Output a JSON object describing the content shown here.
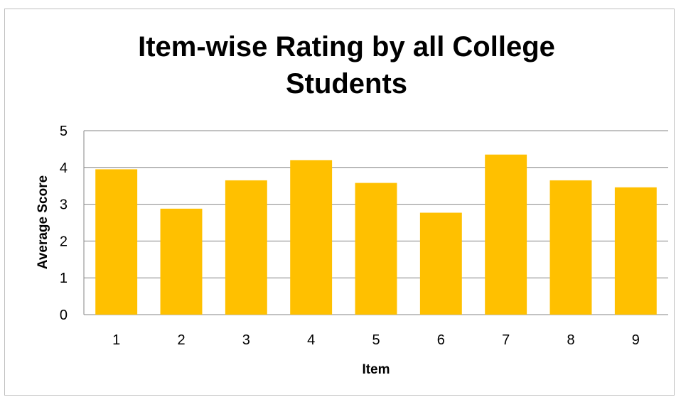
{
  "chart_data": {
    "type": "bar",
    "title_lines": [
      "Item-wise Rating by all College",
      "Students"
    ],
    "xlabel": "Item",
    "ylabel": "Average Score",
    "categories": [
      "1",
      "2",
      "3",
      "4",
      "5",
      "6",
      "7",
      "8",
      "9"
    ],
    "values": [
      3.95,
      2.88,
      3.65,
      4.2,
      3.58,
      2.77,
      4.35,
      3.65,
      3.46
    ],
    "ylim": [
      0,
      5
    ],
    "yticks": [
      "0",
      "1",
      "2",
      "3",
      "4",
      "5"
    ],
    "grid": true,
    "legend": "none",
    "bar_color": "#ffc000",
    "grid_color": "#868686"
  }
}
